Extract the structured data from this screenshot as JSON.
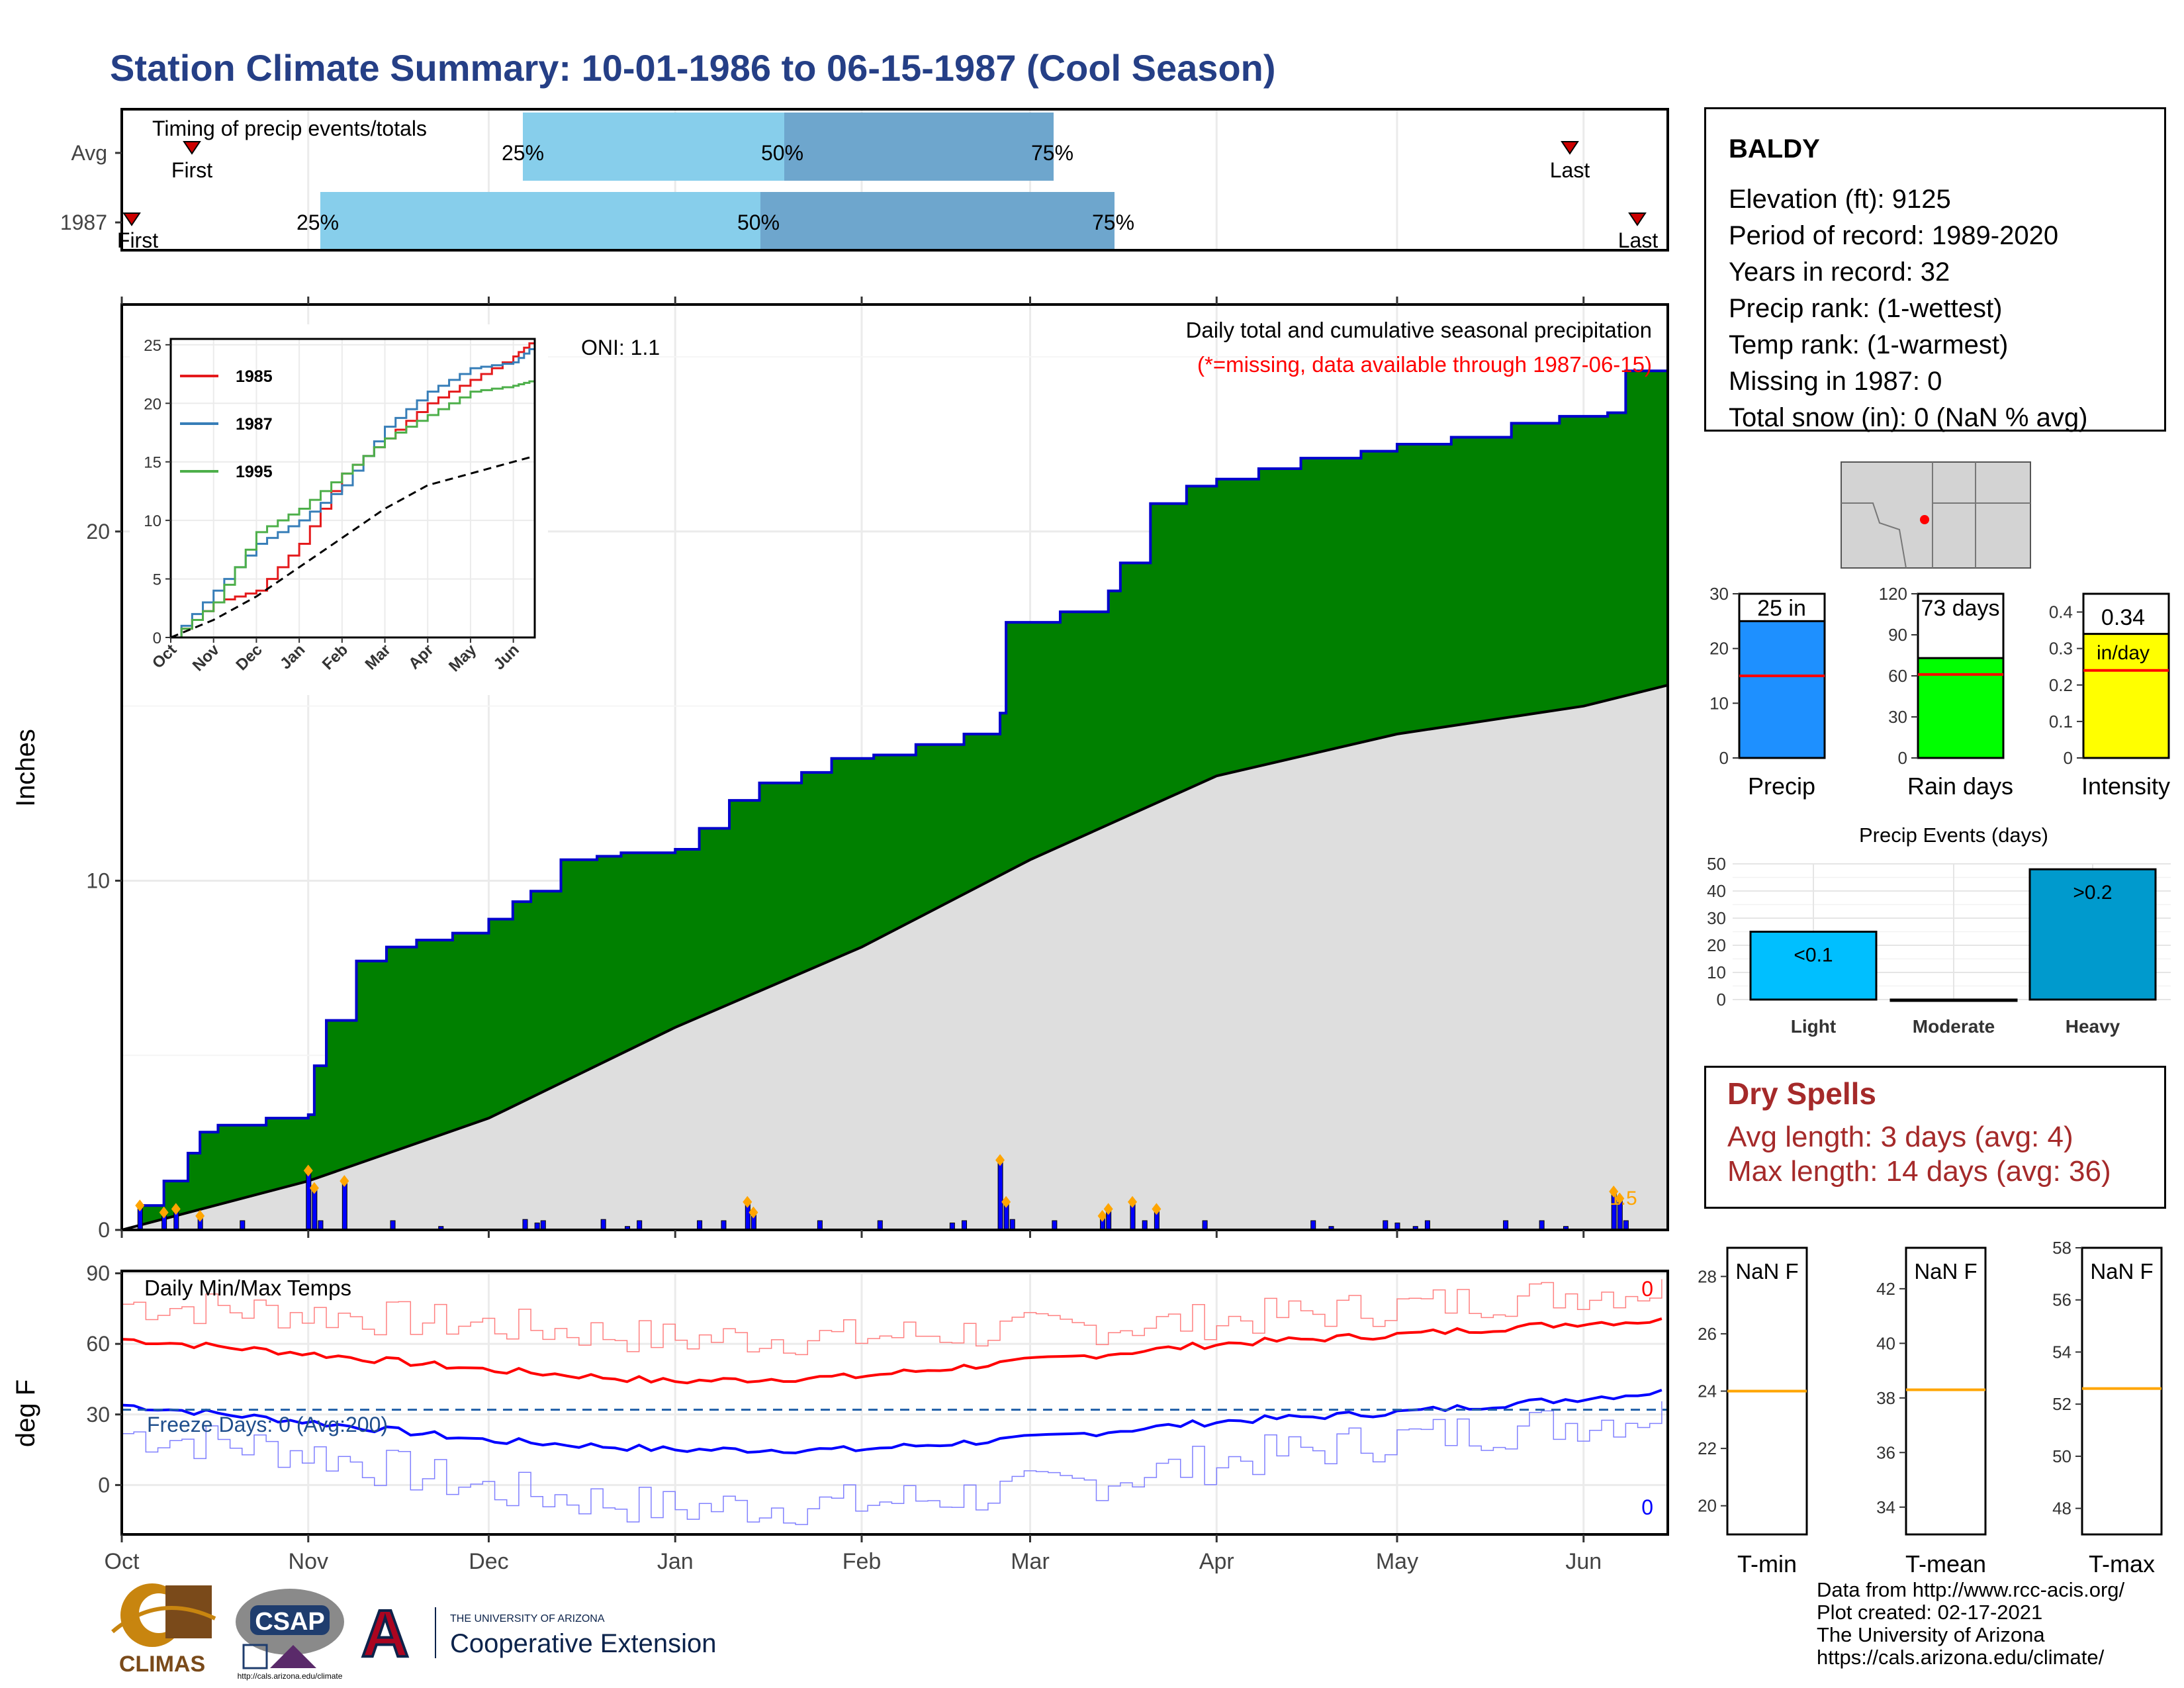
{
  "title": "Station Climate Summary: 10-01-1986 to 06-15-1987 (Cool Season)",
  "colors": {
    "title": "#253f86",
    "cumulative_fill": "#008000",
    "cumulative_line": "#0000cc",
    "average_fill": "#dedede",
    "daily_bar": "#0000ff",
    "marker": "#ffa500",
    "dry_spell": "#a52a2a",
    "missing_note": "#ff0000"
  },
  "timing": {
    "title": "Timing of precip events/totals",
    "rows": [
      {
        "label": "Avg",
        "q25": "25%",
        "q50": "50%",
        "q75": "75%",
        "first": "First",
        "last": "Last"
      },
      {
        "label": "1987",
        "q25": "25%",
        "q50": "50%",
        "q75": "75%",
        "first": "First",
        "last": "Last"
      }
    ]
  },
  "main": {
    "ylabel": "Inches",
    "oni": "ONI: 1.1",
    "subtitle": "Daily total and cumulative seasonal precipitation",
    "missing_note": "(*=missing, data available through 1987-06-15)",
    "peak_label": "1.5",
    "months": [
      "Oct",
      "Nov",
      "Dec",
      "Jan",
      "Feb",
      "Mar",
      "Apr",
      "May",
      "Jun"
    ]
  },
  "inset": {
    "months": [
      "Oct",
      "Nov",
      "Dec",
      "Jan",
      "Feb",
      "Mar",
      "Apr",
      "May",
      "Jun"
    ],
    "legend": [
      "1985",
      "1987",
      "1995"
    ]
  },
  "temps": {
    "title": "Daily Min/Max Temps",
    "ylabel": "deg F",
    "freeze": "Freeze Days: 0 (Avg:200)",
    "max_count": "0",
    "min_count": "0"
  },
  "station": {
    "name": "BALDY",
    "lines": [
      "Elevation (ft): 9125",
      "Period of record: 1989-2020",
      "Years in record: 32",
      "Precip rank:  (1-wettest)",
      "Temp rank:  (1-warmest)",
      "Missing in 1987: 0",
      "Total snow (in): 0 (NaN % avg)"
    ]
  },
  "gauges": [
    {
      "name": "Precip",
      "value_label": "25 in"
    },
    {
      "name": "Rain days",
      "value_label": "73 days"
    },
    {
      "name": "Intensity",
      "value_label": "0.34",
      "unit": "in/day"
    }
  ],
  "events": {
    "title": "Precip Events (days)"
  },
  "dry_spells": {
    "title": "Dry Spells",
    "avg": "Avg length: 3 days (avg: 4)",
    "max": "Max length: 14 days (avg: 36)"
  },
  "temp_boxes": [
    {
      "name": "T-min",
      "label": "NaN F"
    },
    {
      "name": "T-mean",
      "label": "NaN F"
    },
    {
      "name": "T-max",
      "label": "NaN F"
    }
  ],
  "credits": [
    "Data from http://www.rcc-acis.org/",
    "Plot created: 02-17-2021",
    "The University of Arizona",
    "https://cals.arizona.edu/climate/"
  ],
  "logos": {
    "climas": "CLIMAS",
    "csap": "CSAP",
    "csap_url": "http://cals.arizona.edu/climate",
    "ua_letter": "A",
    "ua_small": "THE UNIVERSITY OF ARIZONA",
    "ua_big": "Cooperative Extension"
  },
  "chart_data": [
    {
      "type": "area",
      "name": "cumulative_precip",
      "xlabel": "",
      "ylabel": "Inches",
      "ylim": [
        0,
        26
      ],
      "x_dates": [
        "1986-10-01",
        "1986-10-04",
        "1986-10-08",
        "1986-10-12",
        "1986-10-14",
        "1986-10-17",
        "1986-10-25",
        "1986-11-01",
        "1986-11-02",
        "1986-11-04",
        "1986-11-09",
        "1986-11-14",
        "1986-11-19",
        "1986-11-25",
        "1986-12-01",
        "1986-12-05",
        "1986-12-08",
        "1986-12-13",
        "1986-12-19",
        "1986-12-23",
        "1987-01-01",
        "1987-01-05",
        "1987-01-10",
        "1987-01-15",
        "1987-01-22",
        "1987-01-27",
        "1987-02-03",
        "1987-02-10",
        "1987-02-18",
        "1987-02-24",
        "1987-02-25",
        "1987-03-06",
        "1987-03-14",
        "1987-03-16",
        "1987-03-21",
        "1987-03-27",
        "1987-04-01",
        "1987-04-08",
        "1987-04-15",
        "1987-04-25",
        "1987-05-01",
        "1987-05-10",
        "1987-05-20",
        "1987-05-28",
        "1987-06-05",
        "1987-06-08",
        "1987-06-15"
      ],
      "cumulative": [
        0,
        0.7,
        1.4,
        2.2,
        2.8,
        3.0,
        3.2,
        3.3,
        4.7,
        6.0,
        7.7,
        8.1,
        8.3,
        8.5,
        8.9,
        9.4,
        9.7,
        10.6,
        10.7,
        10.8,
        10.9,
        11.5,
        12.3,
        12.8,
        13.1,
        13.5,
        13.6,
        13.9,
        14.2,
        14.8,
        17.4,
        17.7,
        18.3,
        19.1,
        20.8,
        21.3,
        21.5,
        21.8,
        22.1,
        22.3,
        22.5,
        22.7,
        23.1,
        23.3,
        23.4,
        24.6,
        25.0
      ],
      "avg_dates": [
        "1986-10-01",
        "1986-11-01",
        "1986-12-01",
        "1987-01-01",
        "1987-02-01",
        "1987-03-01",
        "1987-04-01",
        "1987-05-01",
        "1987-06-01",
        "1987-06-15"
      ],
      "avg_cumulative": [
        0,
        1.4,
        3.2,
        5.8,
        8.1,
        10.6,
        13.0,
        14.2,
        15.0,
        15.6
      ],
      "daily_dates": [
        "1986-10-04",
        "1986-10-08",
        "1986-10-10",
        "1986-10-14",
        "1986-11-01",
        "1986-11-02",
        "1986-11-07",
        "1986-11-23",
        "1986-12-07",
        "1986-12-09",
        "1986-12-20",
        "1986-12-24",
        "1987-01-13",
        "1987-01-14",
        "1987-02-16",
        "1987-02-24",
        "1987-02-25",
        "1987-02-26",
        "1987-03-13",
        "1987-03-14",
        "1987-03-18",
        "1987-03-22",
        "1987-04-20",
        "1987-05-01",
        "1987-05-04",
        "1987-05-29",
        "1987-06-06",
        "1987-06-07"
      ],
      "daily_values": [
        0.7,
        0.5,
        0.6,
        0.4,
        1.7,
        1.2,
        1.4,
        0.1,
        0.3,
        0.2,
        0.3,
        0.1,
        0.8,
        0.5,
        0.2,
        2.0,
        0.8,
        0.3,
        0.4,
        0.6,
        0.8,
        0.6,
        0.1,
        0.2,
        0.1,
        0.1,
        1.1,
        0.9
      ]
    },
    {
      "type": "line",
      "name": "inset_cumulative_comparison",
      "xlabel": "",
      "ylabel": "",
      "ylim": [
        0,
        25
      ],
      "x_months": [
        0,
        1,
        2,
        3,
        4,
        5,
        6,
        7,
        8,
        8.5
      ],
      "series": [
        {
          "name": "1985",
          "color": "#e41a1c",
          "values": [
            0,
            3,
            4,
            8,
            14,
            17,
            20,
            22,
            24,
            25.5
          ]
        },
        {
          "name": "1987",
          "color": "#377eb8",
          "values": [
            0,
            4,
            8,
            10,
            13,
            18,
            21,
            23,
            23.5,
            25
          ]
        },
        {
          "name": "1995",
          "color": "#4daf4a",
          "values": [
            0,
            3,
            9,
            11,
            14,
            17,
            19,
            21,
            21.5,
            22
          ]
        },
        {
          "name": "",
          "color": "#000000",
          "dash": true,
          "values": [
            0,
            1.5,
            3.5,
            6,
            8.5,
            11,
            13,
            14,
            15,
            15.5
          ]
        }
      ]
    },
    {
      "type": "line",
      "name": "daily_temps",
      "ylabel": "deg F",
      "ylim": [
        -20,
        90
      ],
      "x_months": [
        0,
        1,
        2,
        3,
        4,
        5,
        6,
        7,
        8,
        8.5
      ],
      "series": [
        {
          "name": "max_daily",
          "color": "#ff8080",
          "values": [
            77,
            73,
            68,
            62,
            63,
            66,
            70,
            76,
            82,
            83
          ]
        },
        {
          "name": "max_avg",
          "color": "#ff0000",
          "values": [
            62,
            56,
            49,
            44,
            46,
            53,
            60,
            64,
            69,
            70
          ]
        },
        {
          "name": "min_avg",
          "color": "#0000ff",
          "values": [
            34,
            27,
            19,
            15,
            15,
            20,
            27,
            31,
            37,
            40
          ]
        },
        {
          "name": "min_daily",
          "color": "#8080ff",
          "values": [
            22,
            14,
            -2,
            -10,
            -8,
            -2,
            10,
            20,
            27,
            31
          ]
        }
      ],
      "freeze_line": 32
    },
    {
      "type": "bar",
      "name": "season_gauges",
      "categories": [
        "Precip",
        "Rain days",
        "Intensity"
      ],
      "values": [
        25,
        73,
        0.34
      ],
      "averages": [
        15,
        61,
        0.24
      ],
      "ylims": [
        [
          0,
          30
        ],
        [
          0,
          120
        ],
        [
          0,
          0.45
        ]
      ]
    },
    {
      "type": "bar",
      "name": "precip_events",
      "title": "Precip Events (days)",
      "categories": [
        "Light",
        "Moderate",
        "Heavy"
      ],
      "values": [
        25,
        0,
        48
      ],
      "bar_labels": [
        "<0.1",
        "",
        ">0.2"
      ],
      "ylim": [
        0,
        50
      ]
    },
    {
      "type": "bar",
      "name": "temp_boxes",
      "categories": [
        "T-min",
        "T-mean",
        "T-max"
      ],
      "averages": [
        24,
        38.3,
        52.6
      ],
      "ylims": [
        [
          19,
          29
        ],
        [
          33,
          43.5
        ],
        [
          47,
          58
        ]
      ]
    }
  ]
}
